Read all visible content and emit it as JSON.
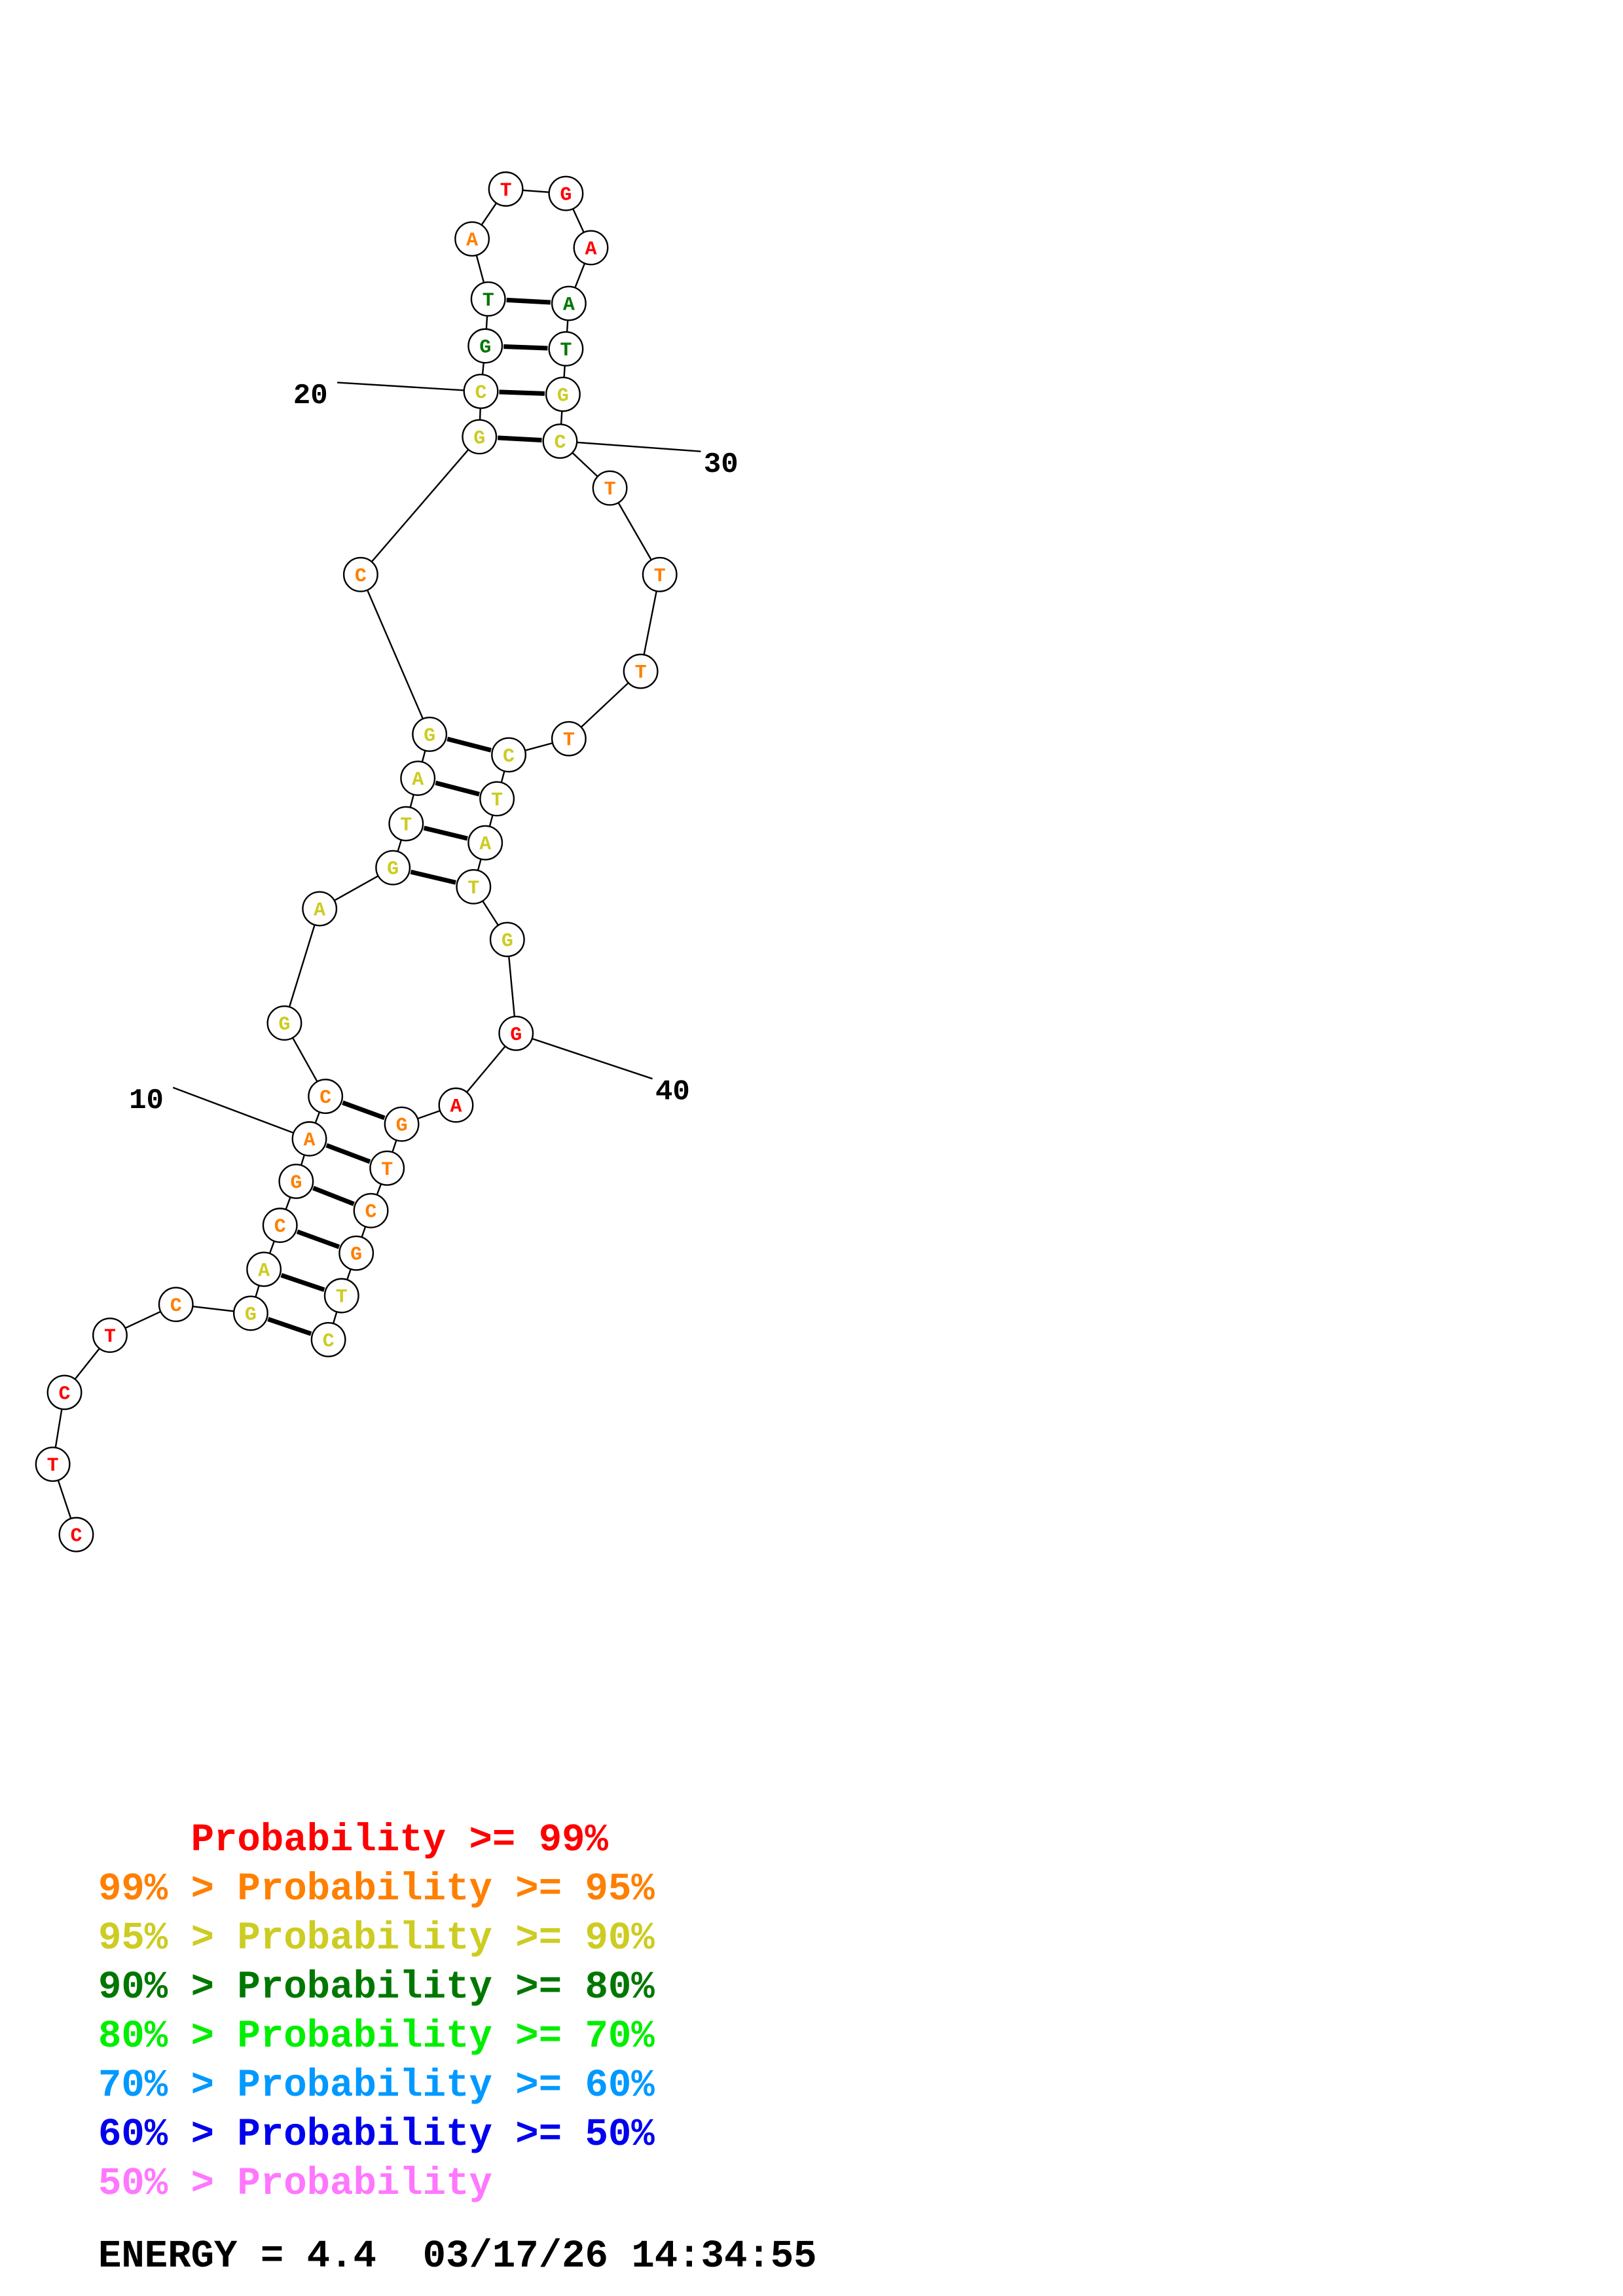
{
  "structure": {
    "nucleotides": [
      {
        "n": 1,
        "base": "C",
        "prob": "p99"
      },
      {
        "n": 2,
        "base": "T",
        "prob": "p99"
      },
      {
        "n": 3,
        "base": "C",
        "prob": "p99"
      },
      {
        "n": 4,
        "base": "T",
        "prob": "p99"
      },
      {
        "n": 5,
        "base": "C",
        "prob": "p95"
      },
      {
        "n": 6,
        "base": "G",
        "prob": "p90"
      },
      {
        "n": 7,
        "base": "A",
        "prob": "p90"
      },
      {
        "n": 8,
        "base": "C",
        "prob": "p95"
      },
      {
        "n": 9,
        "base": "G",
        "prob": "p95"
      },
      {
        "n": 10,
        "base": "A",
        "prob": "p95"
      },
      {
        "n": 11,
        "base": "C",
        "prob": "p95"
      },
      {
        "n": 12,
        "base": "G",
        "prob": "p90"
      },
      {
        "n": 13,
        "base": "A",
        "prob": "p90"
      },
      {
        "n": 14,
        "base": "G",
        "prob": "p90"
      },
      {
        "n": 15,
        "base": "T",
        "prob": "p90"
      },
      {
        "n": 16,
        "base": "A",
        "prob": "p90"
      },
      {
        "n": 17,
        "base": "G",
        "prob": "p90"
      },
      {
        "n": 18,
        "base": "C",
        "prob": "p95"
      },
      {
        "n": 19,
        "base": "G",
        "prob": "p90"
      },
      {
        "n": 20,
        "base": "C",
        "prob": "p90"
      },
      {
        "n": 21,
        "base": "G",
        "prob": "p80"
      },
      {
        "n": 22,
        "base": "T",
        "prob": "p80"
      },
      {
        "n": 23,
        "base": "A",
        "prob": "p95"
      },
      {
        "n": 24,
        "base": "T",
        "prob": "p99"
      },
      {
        "n": 25,
        "base": "G",
        "prob": "p99"
      },
      {
        "n": 26,
        "base": "A",
        "prob": "p99"
      },
      {
        "n": 27,
        "base": "A",
        "prob": "p80"
      },
      {
        "n": 28,
        "base": "T",
        "prob": "p80"
      },
      {
        "n": 29,
        "base": "G",
        "prob": "p90"
      },
      {
        "n": 30,
        "base": "C",
        "prob": "p90"
      },
      {
        "n": 31,
        "base": "T",
        "prob": "p95"
      },
      {
        "n": 32,
        "base": "T",
        "prob": "p95"
      },
      {
        "n": 33,
        "base": "T",
        "prob": "p95"
      },
      {
        "n": 34,
        "base": "T",
        "prob": "p95"
      },
      {
        "n": 35,
        "base": "C",
        "prob": "p90"
      },
      {
        "n": 36,
        "base": "T",
        "prob": "p90"
      },
      {
        "n": 37,
        "base": "A",
        "prob": "p90"
      },
      {
        "n": 38,
        "base": "T",
        "prob": "p90"
      },
      {
        "n": 39,
        "base": "G",
        "prob": "p90"
      },
      {
        "n": 40,
        "base": "G",
        "prob": "p99"
      },
      {
        "n": 41,
        "base": "A",
        "prob": "p99"
      },
      {
        "n": 42,
        "base": "G",
        "prob": "p95"
      },
      {
        "n": 43,
        "base": "T",
        "prob": "p95"
      },
      {
        "n": 44,
        "base": "C",
        "prob": "p95"
      },
      {
        "n": 45,
        "base": "G",
        "prob": "p95"
      },
      {
        "n": 46,
        "base": "T",
        "prob": "p90"
      },
      {
        "n": 47,
        "base": "C",
        "prob": "p90"
      }
    ],
    "pairs": [
      [
        6,
        47
      ],
      [
        7,
        46
      ],
      [
        8,
        45
      ],
      [
        9,
        44
      ],
      [
        10,
        43
      ],
      [
        11,
        42
      ],
      [
        14,
        38
      ],
      [
        15,
        37
      ],
      [
        16,
        36
      ],
      [
        17,
        35
      ],
      [
        19,
        30
      ],
      [
        20,
        29
      ],
      [
        21,
        28
      ],
      [
        22,
        27
      ]
    ],
    "position_labels": [
      {
        "text": "10",
        "nuc": 10
      },
      {
        "text": "20",
        "nuc": 20
      },
      {
        "text": "30",
        "nuc": 30
      },
      {
        "text": "40",
        "nuc": 40
      }
    ]
  },
  "colors": {
    "p99": "#ff0000",
    "p95": "#ff7f00",
    "p90": "#cccc22",
    "p80": "#007700",
    "p70": "#00ee00",
    "p60": "#0099ff",
    "p50": "#0000ee",
    "lt50": "#ff77ff"
  },
  "legend": [
    {
      "text": "    Probability >= 99%",
      "color_key": "p99"
    },
    {
      "text": "99% > Probability >= 95%",
      "color_key": "p95"
    },
    {
      "text": "95% > Probability >= 90%",
      "color_key": "p90"
    },
    {
      "text": "90% > Probability >= 80%",
      "color_key": "p80"
    },
    {
      "text": "80% > Probability >= 70%",
      "color_key": "p70"
    },
    {
      "text": "70% > Probability >= 60%",
      "color_key": "p60"
    },
    {
      "text": "60% > Probability >= 50%",
      "color_key": "p50"
    },
    {
      "text": "50% > Probability",
      "color_key": "lt50"
    }
  ],
  "energy_line": "ENERGY = 4.4  03/17/26 14:34:55"
}
